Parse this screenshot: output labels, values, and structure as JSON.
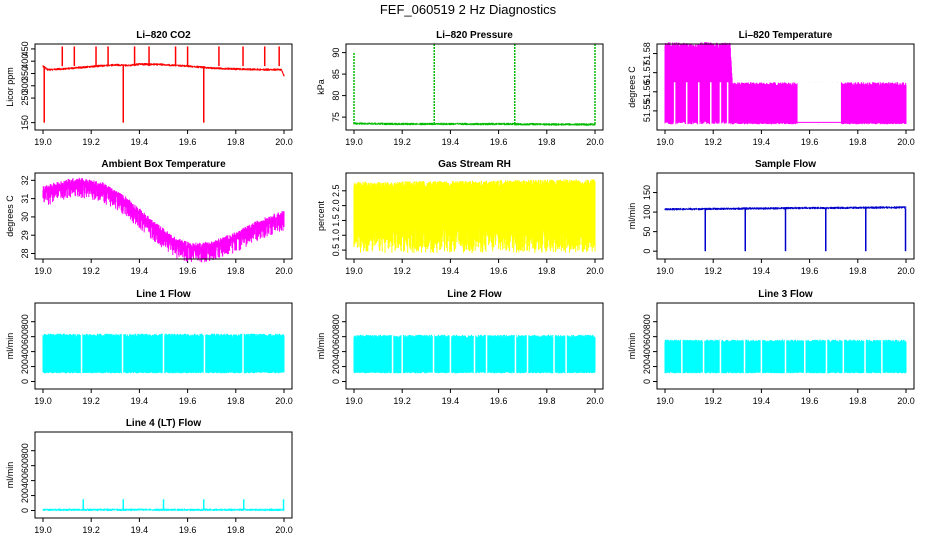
{
  "figure_title": "FEF_060519  2 Hz Diagnostics",
  "chart_data": [
    {
      "type": "line",
      "title": "Li–820 CO2",
      "ylabel": "Licor ppm",
      "xlim": [
        19.0,
        20.0
      ],
      "ylim": [
        120,
        470
      ],
      "xticks": [
        "19.0",
        "19.2",
        "19.4",
        "19.6",
        "19.8",
        "20.0"
      ],
      "yticks": [
        150,
        250,
        300,
        350,
        400,
        450
      ],
      "color": "#ff0000",
      "series": [
        {
          "x": [
            19.0,
            19.02,
            19.1,
            19.2,
            19.3,
            19.35,
            19.4,
            19.5,
            19.6,
            19.7,
            19.8,
            19.9,
            19.99,
            20.0
          ],
          "y": [
            380,
            365,
            370,
            378,
            385,
            382,
            388,
            386,
            380,
            372,
            368,
            366,
            365,
            340
          ]
        }
      ],
      "annotations": [
        "spikes up to ~460 ppm",
        "dropouts down to ~150 ppm near 19.0, 19.33 and 19.67"
      ]
    },
    {
      "type": "line",
      "title": "Li–820 Pressure",
      "ylabel": "kPa",
      "xlim": [
        19.0,
        20.0
      ],
      "ylim": [
        72,
        92
      ],
      "xticks": [
        "19.0",
        "19.2",
        "19.4",
        "19.6",
        "19.8",
        "20.0"
      ],
      "yticks": [
        75,
        80,
        85,
        90
      ],
      "color": "#00bb00",
      "series": [
        {
          "x": [
            19.0,
            19.2,
            19.4,
            19.6,
            19.8,
            20.0
          ],
          "y": [
            73.5,
            73.4,
            73.4,
            73.4,
            73.3,
            73.3
          ]
        }
      ],
      "annotations": [
        "spikes to ~92 kPa at 19.33, 19.67 and 20.0"
      ]
    },
    {
      "type": "line",
      "title": "Li–820 Temperature",
      "ylabel": "degrees C",
      "xlim": [
        19.0,
        20.0
      ],
      "ylim": [
        51.54,
        51.585
      ],
      "xticks": [
        "19.0",
        "19.2",
        "19.4",
        "19.6",
        "19.8",
        "20.0"
      ],
      "yticks": [
        51.55,
        51.56,
        51.57,
        51.58
      ],
      "yticklabels": [
        "51.55",
        "51.56",
        "51.57",
        "51.58"
      ],
      "color": "#ff00ff",
      "series": [
        {
          "x": [
            19.0,
            19.27,
            19.28,
            20.0
          ],
          "y_high": [
            51.586,
            51.586,
            51.565,
            51.565
          ],
          "y_low": [
            51.543,
            51.543,
            51.543,
            51.543
          ]
        }
      ]
    },
    {
      "type": "line",
      "title": "Ambient Box Temperature",
      "ylabel": "degrees C",
      "xlim": [
        19.0,
        20.0
      ],
      "ylim": [
        27.7,
        32.4
      ],
      "xticks": [
        "19.0",
        "19.2",
        "19.4",
        "19.6",
        "19.8",
        "20.0"
      ],
      "yticks": [
        28,
        29,
        30,
        31,
        32
      ],
      "color": "#ff00ff",
      "series": [
        {
          "x": [
            19.0,
            19.1,
            19.15,
            19.25,
            19.35,
            19.45,
            19.55,
            19.62,
            19.7,
            19.8,
            19.9,
            20.0
          ],
          "y": [
            31.4,
            31.8,
            31.9,
            31.6,
            30.8,
            29.6,
            28.6,
            28.3,
            28.4,
            28.9,
            29.6,
            30.1
          ]
        }
      ]
    },
    {
      "type": "line",
      "title": "Gas Stream RH",
      "ylabel": "percent",
      "xlim": [
        19.0,
        20.0
      ],
      "ylim": [
        0.2,
        3.1
      ],
      "xticks": [
        "19.0",
        "19.2",
        "19.4",
        "19.6",
        "19.8",
        "20.0"
      ],
      "yticks": [
        0.5,
        1.0,
        1.5,
        2.0,
        2.5
      ],
      "yticklabels": [
        "0.5",
        "1.0",
        "1.5",
        "2.0",
        "2.5"
      ],
      "color": "#ffff00",
      "series": [
        {
          "x": [
            19.0,
            20.0
          ],
          "y_high": [
            2.8,
            2.9
          ],
          "y_low": [
            0.4,
            0.4
          ]
        }
      ]
    },
    {
      "type": "line",
      "title": "Sample Flow",
      "ylabel": "ml/min",
      "xlim": [
        19.0,
        20.0
      ],
      "ylim": [
        -20,
        200
      ],
      "xticks": [
        "19.0",
        "19.2",
        "19.4",
        "19.6",
        "19.8",
        "20.0"
      ],
      "yticks": [
        0,
        50,
        100,
        150
      ],
      "color": "#0000cc",
      "series": [
        {
          "x": [
            19.0,
            19.5,
            20.0
          ],
          "y": [
            107,
            110,
            112
          ]
        }
      ],
      "annotations": [
        "dips to ~0 ml/min at 19.17, 19.33, 19.5, 19.67, 19.83 and 20.0"
      ]
    },
    {
      "type": "line",
      "title": "Line 1 Flow",
      "ylabel": "ml/min",
      "xlim": [
        19.0,
        20.0
      ],
      "ylim": [
        -100,
        1050
      ],
      "xticks": [
        "19.0",
        "19.2",
        "19.4",
        "19.6",
        "19.8",
        "20.0"
      ],
      "yticks": [
        0,
        200,
        400,
        600,
        800
      ],
      "color": "#00ffff",
      "series": [
        {
          "x": [
            19.0,
            20.0
          ],
          "y_high": [
            640,
            640
          ],
          "y_low": [
            110,
            110
          ]
        }
      ]
    },
    {
      "type": "line",
      "title": "Line 2 Flow",
      "ylabel": "ml/min",
      "xlim": [
        19.0,
        20.0
      ],
      "ylim": [
        -100,
        1050
      ],
      "xticks": [
        "19.0",
        "19.2",
        "19.4",
        "19.6",
        "19.8",
        "20.0"
      ],
      "yticks": [
        0,
        200,
        400,
        600,
        800
      ],
      "color": "#00ffff",
      "series": [
        {
          "x": [
            19.0,
            20.0
          ],
          "y_high": [
            625,
            625
          ],
          "y_low": [
            110,
            110
          ]
        }
      ]
    },
    {
      "type": "line",
      "title": "Line 3 Flow",
      "ylabel": "ml/min",
      "xlim": [
        19.0,
        20.0
      ],
      "ylim": [
        -100,
        1050
      ],
      "xticks": [
        "19.0",
        "19.2",
        "19.4",
        "19.6",
        "19.8",
        "20.0"
      ],
      "yticks": [
        0,
        200,
        400,
        600,
        800
      ],
      "color": "#00ffff",
      "series": [
        {
          "x": [
            19.0,
            20.0
          ],
          "y_high": [
            560,
            560
          ],
          "y_low": [
            110,
            110
          ]
        }
      ]
    },
    {
      "type": "line",
      "title": "Line 4 (LT) Flow",
      "ylabel": "ml/min",
      "xlim": [
        19.0,
        20.0
      ],
      "ylim": [
        -100,
        1050
      ],
      "xticks": [
        "19.0",
        "19.2",
        "19.4",
        "19.6",
        "19.8",
        "20.0"
      ],
      "yticks": [
        0,
        200,
        400,
        600,
        800
      ],
      "color": "#00ffff",
      "series": [
        {
          "x": [
            19.0,
            20.0
          ],
          "y": [
            10,
            10
          ]
        }
      ],
      "annotations": [
        "spikes to ~150 ml/min at 19.17, 19.33, 19.5, 19.67, 19.83 and 20.0"
      ]
    }
  ]
}
